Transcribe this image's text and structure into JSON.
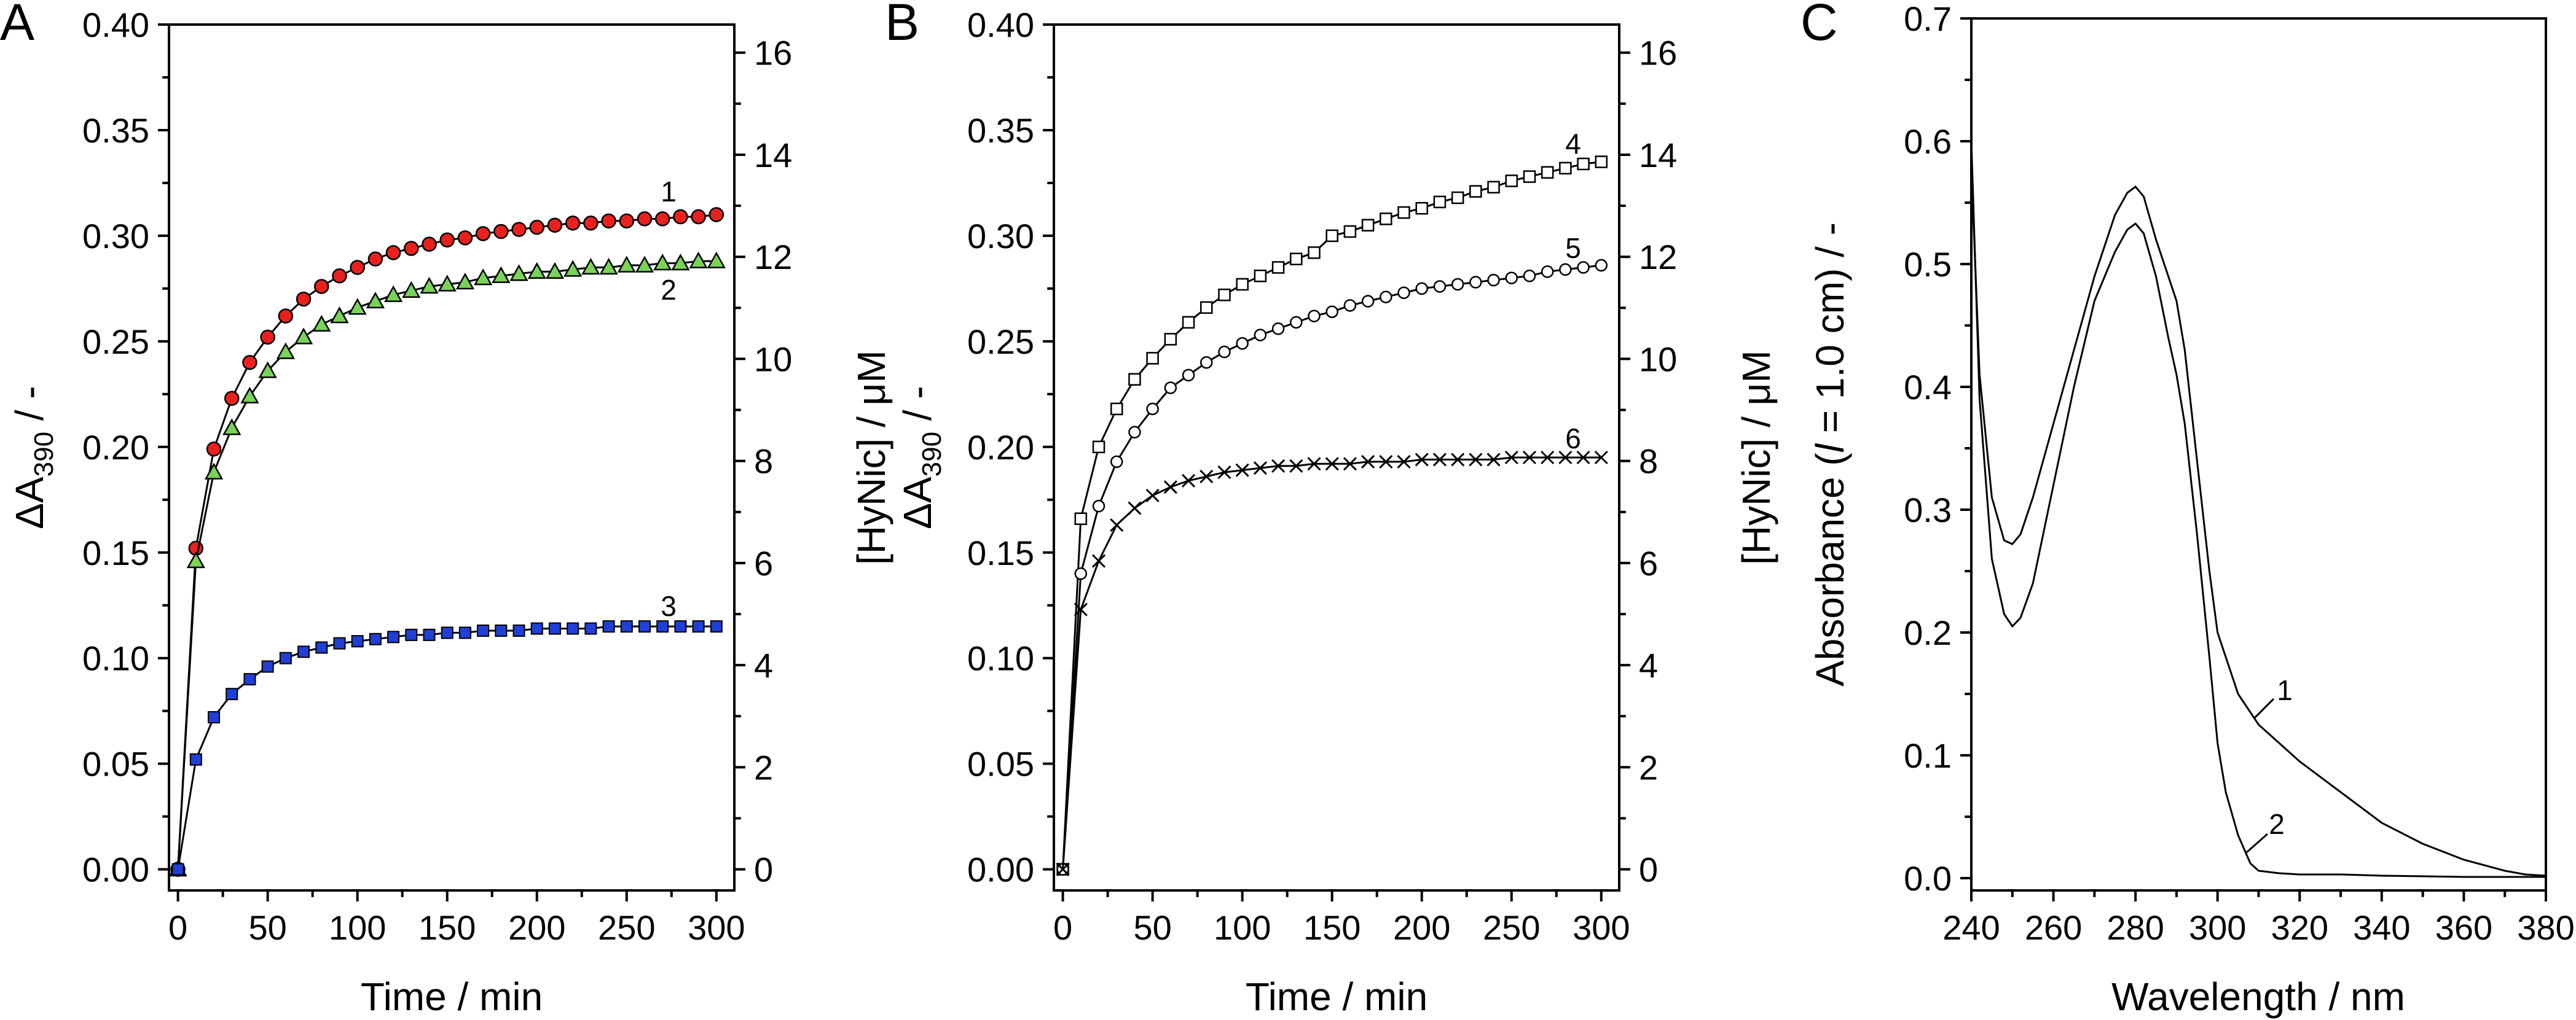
{
  "chart_data": [
    {
      "panel": "A",
      "type": "line",
      "xlabel": "Time / min",
      "ylabel_left": "ΔA390 / -",
      "ylabel_right": "[HyNic] / μM",
      "xlim": [
        -5,
        310
      ],
      "ylim": [
        -0.01,
        0.4
      ],
      "ylim_right": [
        -0.4137,
        16.55
      ],
      "x_ticks": [
        0,
        50,
        100,
        150,
        200,
        250,
        300
      ],
      "y_ticks": [
        0.0,
        0.05,
        0.1,
        0.15,
        0.2,
        0.25,
        0.3,
        0.35,
        0.4
      ],
      "y_tick_labels": [
        "0.00",
        "0.05",
        "0.10",
        "0.15",
        "0.20",
        "0.25",
        "0.30",
        "0.35",
        "0.40"
      ],
      "y_right_ticks": [
        0,
        2,
        4,
        6,
        8,
        10,
        12,
        14,
        16
      ],
      "x": [
        0,
        10,
        20,
        30,
        40,
        50,
        60,
        70,
        80,
        90,
        100,
        110,
        120,
        130,
        140,
        150,
        160,
        170,
        180,
        190,
        200,
        210,
        220,
        230,
        240,
        250,
        260,
        270,
        280,
        290,
        300
      ],
      "series": [
        {
          "name": "1",
          "label": "1",
          "color": "#e8201e",
          "marker": "circle",
          "values": [
            0.0,
            0.152,
            0.199,
            0.223,
            0.24,
            0.252,
            0.262,
            0.27,
            0.276,
            0.281,
            0.285,
            0.289,
            0.292,
            0.294,
            0.296,
            0.298,
            0.299,
            0.301,
            0.302,
            0.303,
            0.304,
            0.305,
            0.306,
            0.306,
            0.307,
            0.307,
            0.308,
            0.308,
            0.309,
            0.309,
            0.31
          ]
        },
        {
          "name": "2",
          "label": "2",
          "color": "#78d357",
          "marker": "triangle",
          "values": [
            0.0,
            0.146,
            0.188,
            0.209,
            0.224,
            0.236,
            0.245,
            0.252,
            0.258,
            0.262,
            0.266,
            0.269,
            0.272,
            0.274,
            0.276,
            0.277,
            0.278,
            0.28,
            0.281,
            0.282,
            0.283,
            0.283,
            0.284,
            0.285,
            0.285,
            0.286,
            0.286,
            0.287,
            0.287,
            0.288,
            0.288
          ]
        },
        {
          "name": "3",
          "label": "3",
          "color": "#1f3fd6",
          "marker": "square",
          "values": [
            0.0,
            0.052,
            0.072,
            0.083,
            0.09,
            0.096,
            0.1,
            0.103,
            0.105,
            0.107,
            0.108,
            0.109,
            0.11,
            0.111,
            0.111,
            0.112,
            0.112,
            0.113,
            0.113,
            0.113,
            0.114,
            0.114,
            0.114,
            0.114,
            0.115,
            0.115,
            0.115,
            0.115,
            0.115,
            0.115,
            0.115
          ]
        }
      ]
    },
    {
      "panel": "B",
      "type": "line",
      "xlabel": "Time / min",
      "ylabel_left": "ΔA390 / -",
      "ylabel_right": "[HyNic] / μM",
      "xlim": [
        -5,
        310
      ],
      "ylim": [
        -0.01,
        0.4
      ],
      "ylim_right": [
        -0.4137,
        16.55
      ],
      "x_ticks": [
        0,
        50,
        100,
        150,
        200,
        250,
        300
      ],
      "y_ticks": [
        0.0,
        0.05,
        0.1,
        0.15,
        0.2,
        0.25,
        0.3,
        0.35,
        0.4
      ],
      "y_tick_labels": [
        "0.00",
        "0.05",
        "0.10",
        "0.15",
        "0.20",
        "0.25",
        "0.30",
        "0.35",
        "0.40"
      ],
      "y_right_ticks": [
        0,
        2,
        4,
        6,
        8,
        10,
        12,
        14,
        16
      ],
      "x": [
        0,
        10,
        20,
        30,
        40,
        50,
        60,
        70,
        80,
        90,
        100,
        110,
        120,
        130,
        140,
        150,
        160,
        170,
        180,
        190,
        200,
        210,
        220,
        230,
        240,
        250,
        260,
        270,
        280,
        290,
        300
      ],
      "series": [
        {
          "name": "4",
          "label": "4",
          "color": "#000000",
          "marker": "open-square",
          "values": [
            0.0,
            0.166,
            0.2,
            0.218,
            0.232,
            0.242,
            0.251,
            0.259,
            0.266,
            0.272,
            0.277,
            0.281,
            0.285,
            0.289,
            0.292,
            0.3,
            0.302,
            0.305,
            0.308,
            0.311,
            0.313,
            0.316,
            0.318,
            0.321,
            0.323,
            0.326,
            0.328,
            0.33,
            0.332,
            0.334,
            0.335
          ]
        },
        {
          "name": "5",
          "label": "5",
          "color": "#000000",
          "marker": "open-circle",
          "values": [
            0.0,
            0.14,
            0.172,
            0.193,
            0.207,
            0.218,
            0.228,
            0.234,
            0.24,
            0.245,
            0.249,
            0.253,
            0.256,
            0.259,
            0.262,
            0.264,
            0.267,
            0.269,
            0.271,
            0.273,
            0.275,
            0.276,
            0.277,
            0.278,
            0.279,
            0.28,
            0.281,
            0.283,
            0.284,
            0.285,
            0.286
          ]
        },
        {
          "name": "6",
          "label": "6",
          "color": "#000000",
          "marker": "cross",
          "values": [
            0.0,
            0.123,
            0.146,
            0.163,
            0.171,
            0.177,
            0.181,
            0.184,
            0.186,
            0.188,
            0.189,
            0.19,
            0.191,
            0.191,
            0.192,
            0.192,
            0.192,
            0.193,
            0.193,
            0.193,
            0.194,
            0.194,
            0.194,
            0.194,
            0.194,
            0.195,
            0.195,
            0.195,
            0.195,
            0.195,
            0.195
          ]
        }
      ]
    },
    {
      "panel": "C",
      "type": "line",
      "xlabel": "Wavelength / nm",
      "ylabel_parts": [
        "Absorbance (",
        "l",
        " = 1.0 cm) / -"
      ],
      "xlim": [
        240,
        380
      ],
      "ylim": [
        -0.01,
        0.7
      ],
      "x_ticks": [
        240,
        260,
        280,
        300,
        320,
        340,
        360,
        380
      ],
      "y_ticks": [
        0.0,
        0.1,
        0.2,
        0.3,
        0.4,
        0.5,
        0.6,
        0.7
      ],
      "y_tick_labels": [
        "0.0",
        "0.1",
        "0.2",
        "0.3",
        "0.4",
        "0.5",
        "0.6",
        "0.7"
      ],
      "series": [
        {
          "name": "1",
          "label": "1",
          "color": "#e8201e",
          "x": [
            240,
            242,
            245,
            248,
            250,
            252,
            255,
            260,
            265,
            270,
            275,
            278,
            280,
            282,
            285,
            288,
            290,
            292,
            295,
            298,
            300,
            305,
            310,
            315,
            320,
            330,
            340,
            350,
            360,
            370,
            375,
            380
          ],
          "y": [
            0.58,
            0.41,
            0.31,
            0.275,
            0.272,
            0.28,
            0.31,
            0.37,
            0.43,
            0.49,
            0.54,
            0.558,
            0.563,
            0.555,
            0.52,
            0.49,
            0.47,
            0.43,
            0.34,
            0.25,
            0.2,
            0.15,
            0.125,
            0.11,
            0.095,
            0.07,
            0.045,
            0.028,
            0.015,
            0.006,
            0.003,
            0.002
          ]
        },
        {
          "name": "2",
          "label": "2",
          "color": "#3ca320",
          "x": [
            240,
            242,
            245,
            248,
            250,
            252,
            255,
            260,
            265,
            270,
            275,
            278,
            280,
            282,
            285,
            288,
            290,
            292,
            295,
            298,
            300,
            302,
            305,
            308,
            310,
            315,
            320,
            330,
            340,
            360,
            380
          ],
          "y": [
            0.6,
            0.39,
            0.26,
            0.215,
            0.205,
            0.212,
            0.24,
            0.32,
            0.4,
            0.47,
            0.51,
            0.528,
            0.533,
            0.525,
            0.49,
            0.44,
            0.41,
            0.37,
            0.28,
            0.18,
            0.11,
            0.07,
            0.035,
            0.012,
            0.006,
            0.004,
            0.003,
            0.003,
            0.002,
            0.001,
            0.001
          ]
        }
      ]
    }
  ]
}
